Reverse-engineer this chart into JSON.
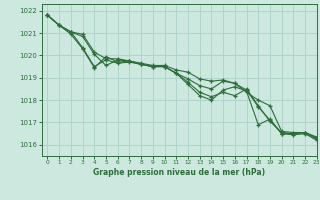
{
  "title": "Graphe pression niveau de la mer (hPa)",
  "background_color": "#cce8df",
  "grid_color": "#b0d4cc",
  "line_color": "#2d6e3a",
  "xlim": [
    -0.5,
    23
  ],
  "ylim": [
    1015.5,
    1022.3
  ],
  "yticks": [
    1016,
    1017,
    1018,
    1019,
    1020,
    1021,
    1022
  ],
  "xticks": [
    0,
    1,
    2,
    3,
    4,
    5,
    6,
    7,
    8,
    9,
    10,
    11,
    12,
    13,
    14,
    15,
    16,
    17,
    18,
    19,
    20,
    21,
    22,
    23
  ],
  "lines": [
    [
      1021.8,
      1021.35,
      1021.05,
      1020.95,
      1020.15,
      1019.85,
      1019.85,
      1019.75,
      1019.65,
      1019.55,
      1019.55,
      1019.35,
      1019.25,
      1018.95,
      1018.85,
      1018.9,
      1018.75,
      1018.35,
      1018.0,
      1017.75,
      1016.6,
      1016.55,
      1016.55,
      1016.25
    ],
    [
      1021.8,
      1021.35,
      1021.05,
      1020.85,
      1020.05,
      1019.55,
      1019.8,
      1019.75,
      1019.6,
      1019.5,
      1019.5,
      1019.2,
      1018.95,
      1018.65,
      1018.5,
      1018.85,
      1018.75,
      1018.45,
      1017.7,
      1017.1,
      1016.5,
      1016.45,
      1016.5,
      1016.2
    ],
    [
      1021.8,
      1021.35,
      1021.05,
      1020.35,
      1019.5,
      1019.8,
      1019.65,
      1019.7,
      1019.6,
      1019.5,
      1019.5,
      1019.2,
      1018.8,
      1018.35,
      1018.15,
      1018.35,
      1018.2,
      1018.5,
      1017.75,
      1017.05,
      1016.55,
      1016.5,
      1016.55,
      1016.3
    ],
    [
      1021.8,
      1021.35,
      1020.95,
      1020.3,
      1019.45,
      1019.95,
      1019.7,
      1019.75,
      1019.6,
      1019.5,
      1019.5,
      1019.2,
      1018.7,
      1018.2,
      1018.0,
      1018.45,
      1018.6,
      1018.4,
      1016.9,
      1017.15,
      1016.5,
      1016.5,
      1016.55,
      1016.35
    ]
  ]
}
